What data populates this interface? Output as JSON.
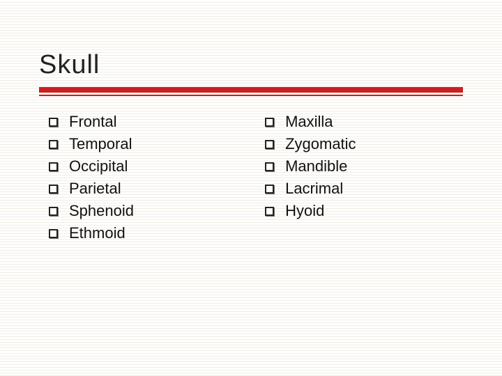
{
  "title": "Skull",
  "divider_color": "#cc1f1f",
  "text_color": "#111111",
  "font_family": "Verdana",
  "title_fontsize": 38,
  "item_fontsize": 22,
  "left_column": [
    "Frontal",
    "Temporal",
    "Occipital",
    "Parietal",
    "Sphenoid",
    "Ethmoid"
  ],
  "right_column": [
    "Maxilla",
    "Zygomatic",
    "Mandible",
    "Lacrimal",
    "Hyoid"
  ]
}
